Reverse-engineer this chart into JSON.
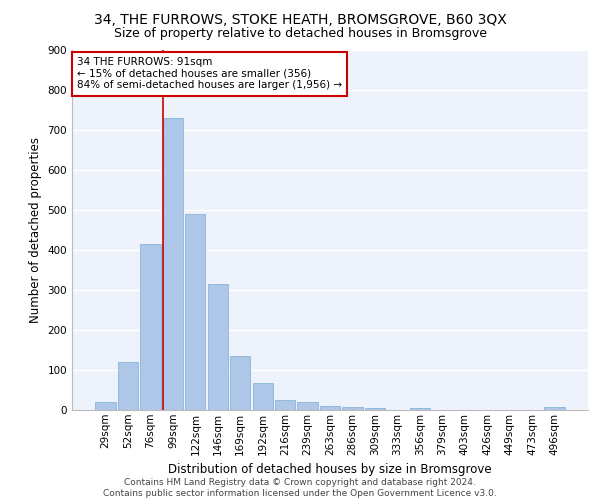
{
  "title_line1": "34, THE FURROWS, STOKE HEATH, BROMSGROVE, B60 3QX",
  "title_line2": "Size of property relative to detached houses in Bromsgrove",
  "xlabel": "Distribution of detached houses by size in Bromsgrove",
  "ylabel": "Number of detached properties",
  "categories": [
    "29sqm",
    "52sqm",
    "76sqm",
    "99sqm",
    "122sqm",
    "146sqm",
    "169sqm",
    "192sqm",
    "216sqm",
    "239sqm",
    "263sqm",
    "286sqm",
    "309sqm",
    "333sqm",
    "356sqm",
    "379sqm",
    "403sqm",
    "426sqm",
    "449sqm",
    "473sqm",
    "496sqm"
  ],
  "values": [
    20,
    120,
    415,
    730,
    490,
    315,
    135,
    67,
    25,
    20,
    10,
    8,
    5,
    0,
    5,
    0,
    0,
    0,
    0,
    0,
    8
  ],
  "bar_color": "#aec6e8",
  "bar_edge_color": "#7aafd4",
  "vline_color": "#cc0000",
  "vline_x_index": 2.57,
  "annotation_line1": "34 THE FURROWS: 91sqm",
  "annotation_line2": "← 15% of detached houses are smaller (356)",
  "annotation_line3": "84% of semi-detached houses are larger (1,956) →",
  "annotation_box_color": "#cc0000",
  "ylim": [
    0,
    900
  ],
  "yticks": [
    0,
    100,
    200,
    300,
    400,
    500,
    600,
    700,
    800,
    900
  ],
  "footnote_line1": "Contains HM Land Registry data © Crown copyright and database right 2024.",
  "footnote_line2": "Contains public sector information licensed under the Open Government Licence v3.0.",
  "background_color": "#eef2fa",
  "grid_color": "#ffffff",
  "title_fontsize": 10,
  "subtitle_fontsize": 9,
  "axis_label_fontsize": 8.5,
  "tick_fontsize": 7.5,
  "annotation_fontsize": 7.5,
  "footnote_fontsize": 6.5
}
